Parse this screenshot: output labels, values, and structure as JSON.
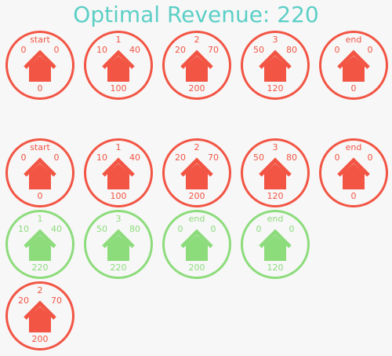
{
  "title": "Optimal Revenue: 220",
  "colors": {
    "title": "#5ccfc6",
    "red": "#f25544",
    "green": "#8ddc7c",
    "background": "#f7f7f7"
  },
  "icon": "house-icon",
  "rows": [
    [
      {
        "name": "start",
        "start": "0",
        "end": "0",
        "value": "0",
        "color": "red"
      },
      {
        "name": "1",
        "start": "10",
        "end": "40",
        "value": "100",
        "color": "red"
      },
      {
        "name": "2",
        "start": "20",
        "end": "70",
        "value": "200",
        "color": "red"
      },
      {
        "name": "3",
        "start": "50",
        "end": "80",
        "value": "120",
        "color": "red"
      },
      {
        "name": "end",
        "start": "0",
        "end": "0",
        "value": "0",
        "color": "red"
      }
    ],
    [
      {
        "name": "start",
        "start": "0",
        "end": "0",
        "value": "0",
        "color": "red"
      },
      {
        "name": "1",
        "start": "10",
        "end": "40",
        "value": "100",
        "color": "red"
      },
      {
        "name": "2",
        "start": "20",
        "end": "70",
        "value": "200",
        "color": "red"
      },
      {
        "name": "3",
        "start": "50",
        "end": "80",
        "value": "120",
        "color": "red"
      },
      {
        "name": "end",
        "start": "0",
        "end": "0",
        "value": "0",
        "color": "red"
      }
    ],
    [
      {
        "name": "1",
        "start": "10",
        "end": "40",
        "value": "220",
        "color": "green"
      },
      {
        "name": "3",
        "start": "50",
        "end": "80",
        "value": "220",
        "color": "green"
      },
      {
        "name": "end",
        "start": "0",
        "end": "0",
        "value": "200",
        "color": "green"
      },
      {
        "name": "end",
        "start": "0",
        "end": "0",
        "value": "120",
        "color": "green"
      }
    ],
    [
      {
        "name": "2",
        "start": "20",
        "end": "70",
        "value": "200",
        "color": "red"
      }
    ]
  ]
}
